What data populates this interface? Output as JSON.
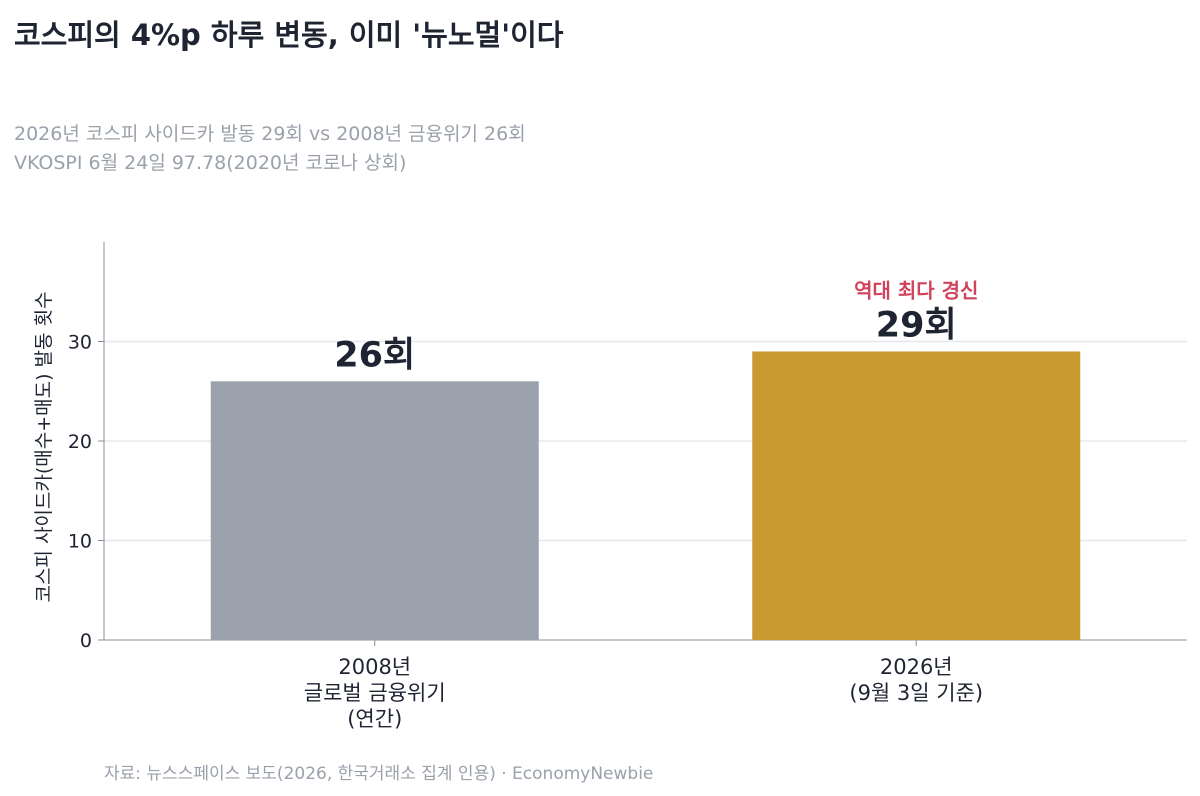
{
  "header": {
    "title": "코스피의 4%p 하루 변동, 이미 '뉴노멀'이다",
    "subtitle_lines": [
      "2026년 코스피 사이드카 발동 29회 vs 2008년 금융위기 26회",
      "VKOSPI 6월 24일 97.78(2020년 코로나 상회)"
    ]
  },
  "footer": {
    "source": "자료: 뉴스스페이스 보도(2026, 한국거래소 집계 인용) · EconomyNewbie"
  },
  "colors": {
    "bar_2008": "#9ba1ad",
    "bar_2026": "#c89a30",
    "annotation": "#d1435b",
    "grid": "#e6e8ec",
    "axis": "#8a8f99",
    "text_dark": "#1f2433"
  },
  "chart_data": {
    "type": "bar",
    "categories": [
      [
        "2008년",
        "글로벌 금융위기",
        "(연간)"
      ],
      [
        "2026년",
        "(9월 3일 기준)"
      ]
    ],
    "values": [
      26,
      29
    ],
    "data_labels": [
      "26회",
      "29회"
    ],
    "annotation": {
      "category_index": 1,
      "text": "역대 최다 경신"
    },
    "ylabel": "코스피 사이드카(매수+매도) 발동 횟수",
    "xlabel": "",
    "ylim": [
      0,
      40
    ],
    "yticks": [
      0,
      10,
      20,
      30
    ],
    "grid": true,
    "legend": "none"
  }
}
